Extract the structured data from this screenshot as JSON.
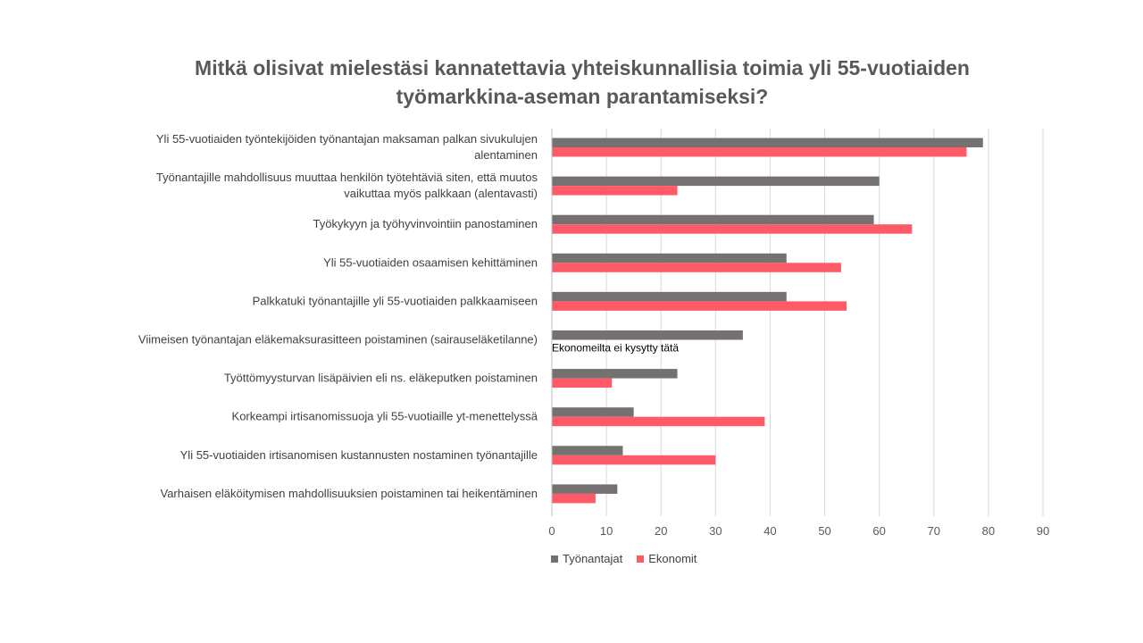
{
  "chart_data": {
    "type": "bar",
    "orientation": "horizontal",
    "title_lines": [
      "Mitkä olisivat mielestäsi kannatettavia yhteiskunnallisia toimia yli 55-vuotiaiden",
      "työmarkkina-aseman parantamiseksi?"
    ],
    "categories": [
      [
        "Yli 55-vuotiaiden työntekijöiden työnantajan maksaman palkan sivukulujen",
        "alentaminen"
      ],
      [
        "Työnantajille mahdollisuus muuttaa henkilön työtehtäviä siten, että muutos",
        "vaikuttaa myös palkkaan (alentavasti)"
      ],
      [
        "Työkykyyn ja työhyvinvointiin panostaminen"
      ],
      [
        "Yli 55-vuotiaiden osaamisen kehittäminen"
      ],
      [
        "Palkkatuki työnantajille yli 55-vuotiaiden palkkaamiseen"
      ],
      [
        "Viimeisen työnantajan eläkemaksurasitteen poistaminen (sairauseläketilanne)"
      ],
      [
        "Työttömyysturvan lisäpäivien eli ns. eläkeputken poistaminen"
      ],
      [
        "Korkeampi irtisanomissuoja yli 55-vuotiaille yt-menettelyssä"
      ],
      [
        "Yli 55-vuotiaiden irtisanomisen kustannusten nostaminen työnantajille"
      ],
      [
        "Varhaisen eläköitymisen mahdollisuuksien poistaminen tai heikentäminen"
      ]
    ],
    "series": [
      {
        "name": "Työnantajat",
        "color": "#767171",
        "values": [
          79,
          60,
          59,
          43,
          43,
          35,
          23,
          15,
          13,
          12
        ]
      },
      {
        "name": "Ekonomit",
        "color": "#FF5A67",
        "values": [
          76,
          23,
          66,
          53,
          54,
          null,
          11,
          39,
          30,
          8
        ]
      }
    ],
    "annotations": [
      {
        "category_index": 5,
        "series_index": 1,
        "text": "Ekonomeilta ei kysytty tätä"
      }
    ],
    "xlim": [
      0,
      90
    ],
    "xticks": [
      0,
      10,
      20,
      30,
      40,
      50,
      60,
      70,
      80,
      90
    ],
    "grid": true,
    "legend_position": "bottom"
  }
}
